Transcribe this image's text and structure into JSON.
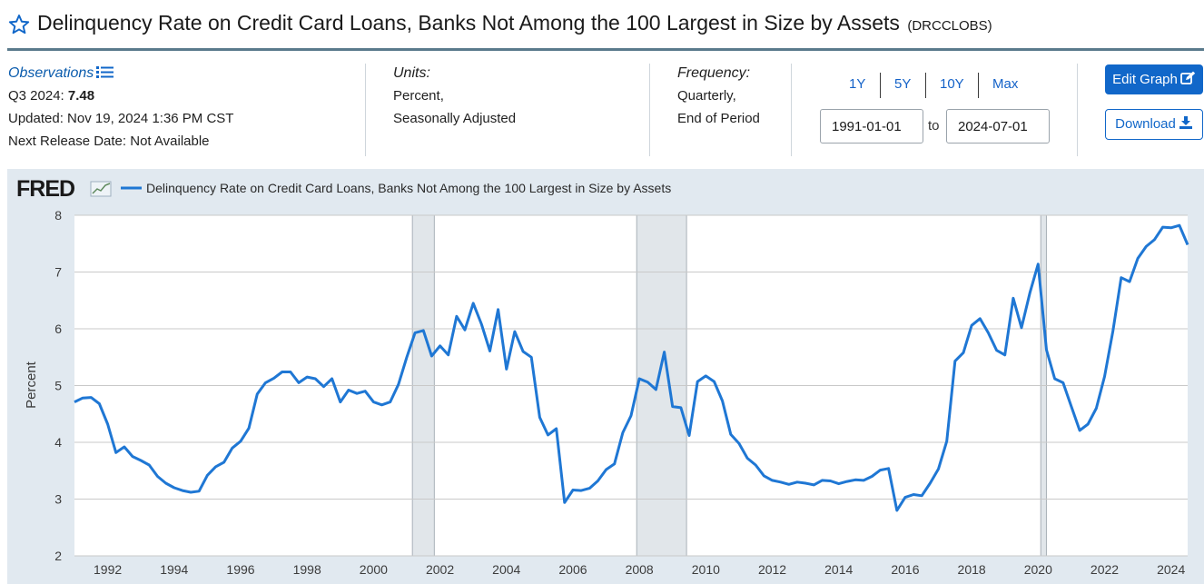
{
  "header": {
    "title": "Delinquency Rate on Credit Card Loans, Banks Not Among the 100 Largest in Size by Assets",
    "series_id": "(DRCCLOBS)"
  },
  "observations": {
    "heading": "Observations",
    "latest_label": "Q3 2024:",
    "latest_value": "7.48",
    "updated": "Updated: Nov 19, 2024 1:36 PM CST",
    "next_release": "Next Release Date: Not Available"
  },
  "units": {
    "heading": "Units:",
    "line1": "Percent,",
    "line2": "Seasonally Adjusted"
  },
  "frequency": {
    "heading": "Frequency:",
    "line1": "Quarterly,",
    "line2": "End of Period"
  },
  "range": {
    "buttons": [
      "1Y",
      "5Y",
      "10Y",
      "Max"
    ],
    "start": "1991-01-01",
    "to_label": "to",
    "end": "2024-07-01"
  },
  "actions": {
    "edit_label": "Edit Graph",
    "download_label": "Download"
  },
  "colors": {
    "line": "#1f77d4",
    "accent": "#1167c9",
    "panel": "#e1e9f0",
    "recession": "#e1e6ea"
  },
  "chart_data": {
    "type": "line",
    "logo": "FRED",
    "series": [
      {
        "name": "Delinquency Rate on Credit Card Loans, Banks Not Among the 100 Largest in Size by Assets"
      }
    ],
    "ylabel": "Percent",
    "ylim": [
      2,
      8
    ],
    "yticks": [
      2,
      3,
      4,
      5,
      6,
      7,
      8
    ],
    "xlim": [
      1991.0,
      2024.5
    ],
    "xticks": [
      1992,
      1994,
      1996,
      1998,
      2000,
      2002,
      2004,
      2006,
      2008,
      2010,
      2012,
      2014,
      2016,
      2018,
      2020,
      2022,
      2024
    ],
    "grid": true,
    "legend": "top-left",
    "recessions": [
      [
        2001.17,
        2001.83
      ],
      [
        2007.92,
        2009.42
      ],
      [
        2020.08,
        2020.25
      ]
    ],
    "x": [
      1991.0,
      1991.25,
      1991.5,
      1991.75,
      1992.0,
      1992.25,
      1992.5,
      1992.75,
      1993.0,
      1993.25,
      1993.5,
      1993.75,
      1994.0,
      1994.25,
      1994.5,
      1994.75,
      1995.0,
      1995.25,
      1995.5,
      1995.75,
      1996.0,
      1996.25,
      1996.5,
      1996.75,
      1997.0,
      1997.25,
      1997.5,
      1997.75,
      1998.0,
      1998.25,
      1998.5,
      1998.75,
      1999.0,
      1999.25,
      1999.5,
      1999.75,
      2000.0,
      2000.25,
      2000.5,
      2000.75,
      2001.0,
      2001.25,
      2001.5,
      2001.75,
      2002.0,
      2002.25,
      2002.5,
      2002.75,
      2003.0,
      2003.25,
      2003.5,
      2003.75,
      2004.0,
      2004.25,
      2004.5,
      2004.75,
      2005.0,
      2005.25,
      2005.5,
      2005.75,
      2006.0,
      2006.25,
      2006.5,
      2006.75,
      2007.0,
      2007.25,
      2007.5,
      2007.75,
      2008.0,
      2008.25,
      2008.5,
      2008.75,
      2009.0,
      2009.25,
      2009.5,
      2009.75,
      2010.0,
      2010.25,
      2010.5,
      2010.75,
      2011.0,
      2011.25,
      2011.5,
      2011.75,
      2012.0,
      2012.25,
      2012.5,
      2012.75,
      2013.0,
      2013.25,
      2013.5,
      2013.75,
      2014.0,
      2014.25,
      2014.5,
      2014.75,
      2015.0,
      2015.25,
      2015.5,
      2015.75,
      2016.0,
      2016.25,
      2016.5,
      2016.75,
      2017.0,
      2017.25,
      2017.5,
      2017.75,
      2018.0,
      2018.25,
      2018.5,
      2018.75,
      2019.0,
      2019.25,
      2019.5,
      2019.75,
      2020.0,
      2020.25,
      2020.5,
      2020.75,
      2021.0,
      2021.25,
      2021.5,
      2021.75,
      2022.0,
      2022.25,
      2022.5,
      2022.75,
      2023.0,
      2023.25,
      2023.5,
      2023.75,
      2024.0,
      2024.25,
      2024.5
    ],
    "values": [
      4.71,
      4.78,
      4.79,
      4.68,
      4.32,
      3.82,
      3.92,
      3.75,
      3.68,
      3.6,
      3.4,
      3.28,
      3.2,
      3.15,
      3.12,
      3.14,
      3.42,
      3.57,
      3.65,
      3.9,
      4.02,
      4.25,
      4.85,
      5.05,
      5.13,
      5.24,
      5.24,
      5.05,
      5.15,
      5.12,
      4.98,
      5.12,
      4.71,
      4.92,
      4.86,
      4.9,
      4.71,
      4.66,
      4.71,
      5.02,
      5.5,
      5.93,
      5.97,
      5.52,
      5.7,
      5.54,
      6.22,
      5.98,
      6.45,
      6.08,
      5.61,
      6.34,
      5.29,
      5.95,
      5.6,
      5.5,
      4.44,
      4.13,
      4.24,
      2.94,
      3.16,
      3.15,
      3.19,
      3.32,
      3.52,
      3.62,
      4.17,
      4.47,
      5.12,
      5.06,
      4.93,
      5.59,
      4.63,
      4.61,
      4.12,
      5.07,
      5.17,
      5.07,
      4.73,
      4.14,
      3.98,
      3.72,
      3.6,
      3.41,
      3.33,
      3.3,
      3.26,
      3.3,
      3.28,
      3.25,
      3.33,
      3.32,
      3.27,
      3.31,
      3.34,
      3.33,
      3.4,
      3.51,
      3.54,
      2.8,
      3.03,
      3.08,
      3.06,
      3.28,
      3.53,
      4.02,
      5.43,
      5.58,
      6.06,
      6.18,
      5.93,
      5.62,
      5.54,
      6.54,
      6.02,
      6.63,
      7.14,
      5.63,
      5.12,
      5.05,
      4.63,
      4.21,
      4.32,
      4.6,
      5.16,
      5.96,
      6.9,
      6.83,
      7.24,
      7.45,
      7.57,
      7.79,
      7.78,
      7.82,
      7.48
    ]
  }
}
